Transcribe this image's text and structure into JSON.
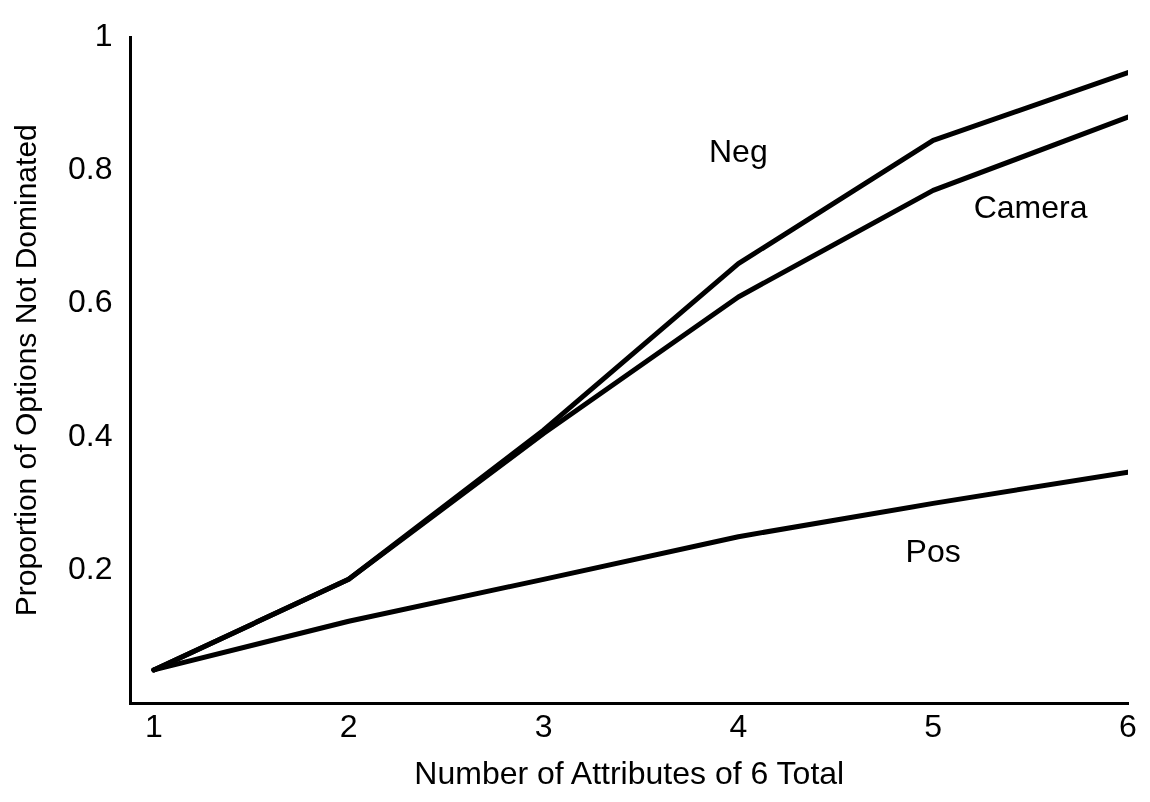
{
  "chart_data": {
    "type": "line",
    "xlabel": "Number of Attributes of 6 Total",
    "ylabel": "Proportion of Options Not Dominated",
    "x": [
      1,
      2,
      3,
      4,
      5,
      6
    ],
    "series": [
      {
        "name": "Neg",
        "color": "#000000",
        "values": [
          0.05,
          0.186,
          0.41,
          0.66,
          0.845,
          0.947
        ]
      },
      {
        "name": "Camera",
        "color": "#000000",
        "values": [
          0.05,
          0.186,
          0.405,
          0.61,
          0.77,
          0.88
        ]
      },
      {
        "name": "Pos",
        "color": "#000000",
        "values": [
          0.05,
          0.123,
          0.186,
          0.25,
          0.3,
          0.347
        ]
      }
    ],
    "xlim": [
      0.88,
      6
    ],
    "xticks": [
      1,
      2,
      3,
      4,
      5,
      6
    ],
    "ylim": [
      0,
      1
    ],
    "yticks": [
      0.2,
      0.4,
      0.6,
      0.8,
      1
    ],
    "grid": false,
    "legend": false,
    "marker": "none",
    "line_style": "solid"
  }
}
